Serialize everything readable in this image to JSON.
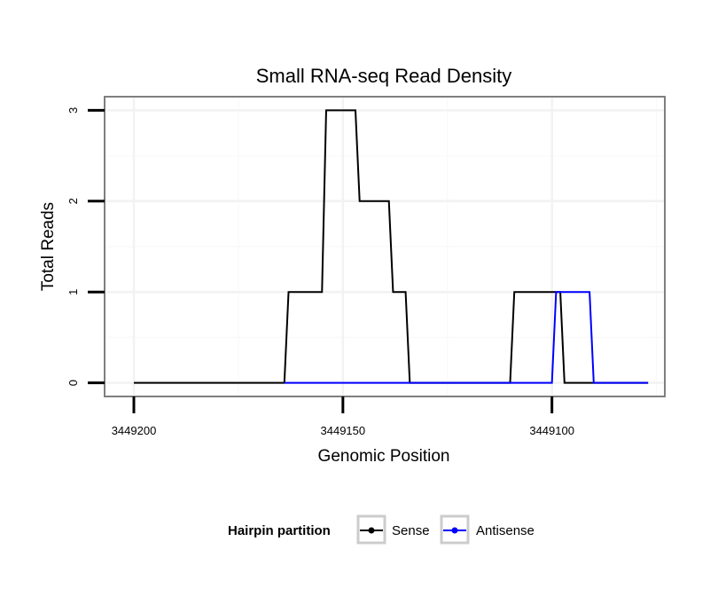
{
  "chart_data": {
    "type": "line",
    "title": "Small RNA-seq Read Density",
    "xlabel": "Genomic Position",
    "ylabel": "Total Reads",
    "x_reversed": true,
    "xlim": [
      3449207,
      3449073
    ],
    "ylim": [
      -0.15,
      3.15
    ],
    "x_ticks": [
      3449200,
      3449150,
      3449100
    ],
    "x_tick_labels": [
      "3449200",
      "3449150",
      "3449100"
    ],
    "x_minor_gridlines": [
      3449175,
      3449125,
      3449075
    ],
    "y_ticks": [
      0,
      1,
      2,
      3
    ],
    "y_tick_labels": [
      "0",
      "1",
      "2",
      "3"
    ],
    "y_minor_gridlines": [
      0.5,
      1.5,
      2.5
    ],
    "grid": true,
    "legend": {
      "title": "Hairpin partition",
      "position": "bottom"
    },
    "series": [
      {
        "name": "Sense",
        "color": "#000000",
        "x": [
          3449200,
          3449164,
          3449163,
          3449155,
          3449154,
          3449147,
          3449146,
          3449139,
          3449138,
          3449135,
          3449134,
          3449110,
          3449109,
          3449098,
          3449097,
          3449077
        ],
        "y": [
          0,
          0,
          1,
          1,
          3,
          3,
          2,
          2,
          1,
          1,
          0,
          0,
          1,
          1,
          0,
          0
        ]
      },
      {
        "name": "Antisense",
        "color": "#0000ff",
        "x": [
          3449164,
          3449134,
          3449110,
          3449100,
          3449099,
          3449091,
          3449090,
          3449077
        ],
        "y": [
          0,
          0,
          0,
          0,
          1,
          1,
          0,
          0
        ]
      }
    ]
  }
}
